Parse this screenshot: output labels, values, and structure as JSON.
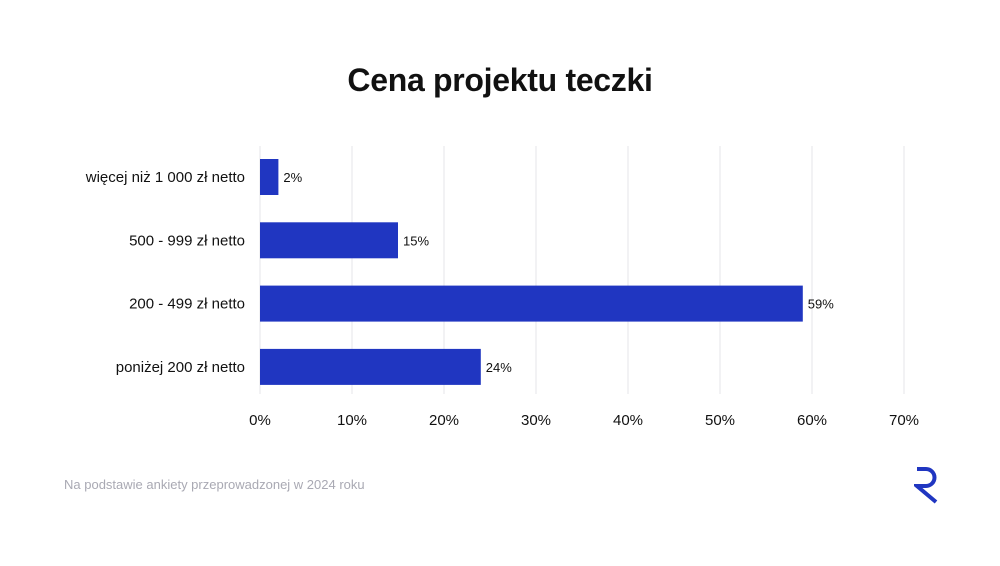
{
  "header": {
    "title": "Cena projektu teczki"
  },
  "footer": {
    "note": "Na podstawie ankiety przeprowadzonej w 2024 roku"
  },
  "brand": {
    "logo_icon": "r-logo-icon",
    "accent": "#2036c1"
  },
  "chart_data": {
    "type": "bar",
    "orientation": "horizontal",
    "title": "Cena projektu teczki",
    "categories": [
      "więcej niż 1 000 zł netto",
      "500 - 999 zł netto",
      "200 - 499 zł netto",
      "poniżej 200 zł netto"
    ],
    "values": [
      2,
      15,
      59,
      24
    ],
    "data_labels": [
      "2%",
      "15%",
      "59%",
      "24%"
    ],
    "xlim": [
      0,
      70
    ],
    "xticks": [
      0,
      10,
      20,
      30,
      40,
      50,
      60,
      70
    ],
    "xtick_labels": [
      "0%",
      "10%",
      "20%",
      "30%",
      "40%",
      "50%",
      "60%",
      "70%"
    ],
    "grid": "vertical",
    "bar_color": "#2036c1",
    "grid_color": "#e4e4e8"
  }
}
